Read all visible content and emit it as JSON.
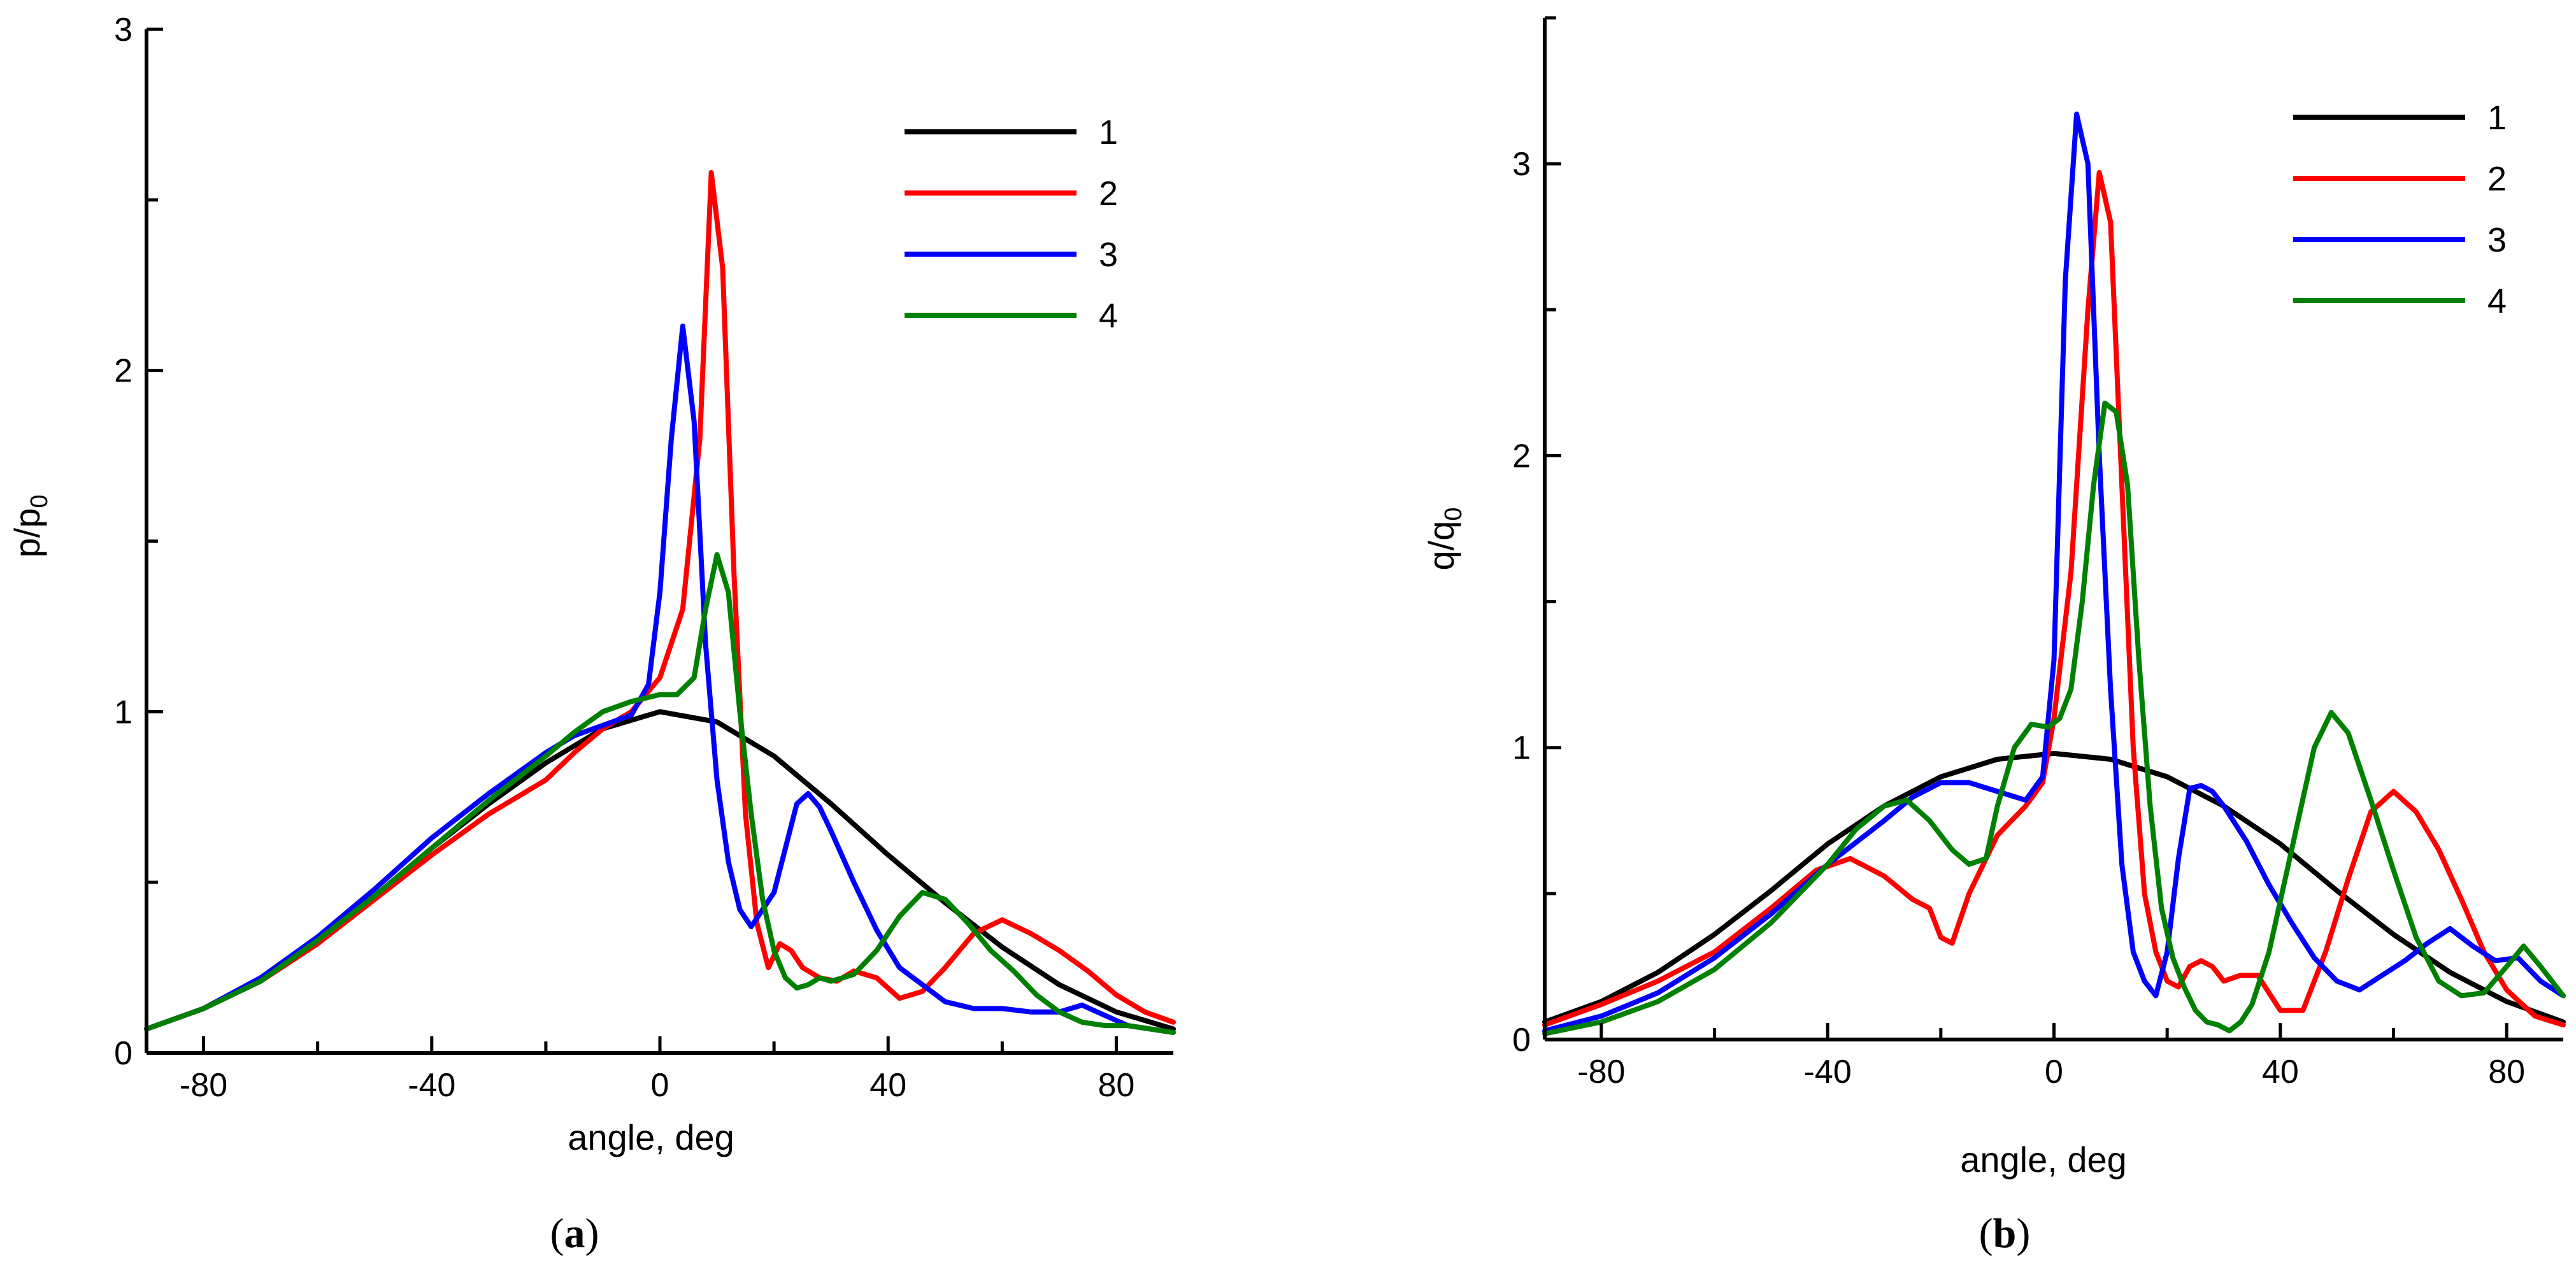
{
  "chart_data": [
    {
      "type": "line",
      "panel_label": "a",
      "xlabel": "angle, deg",
      "ylabel": "p/p",
      "ylabel_sub": "0",
      "xlim": [
        -90,
        90
      ],
      "ylim": [
        0,
        3
      ],
      "xticks": [
        -80,
        -40,
        0,
        40,
        80
      ],
      "yticks": [
        0,
        1,
        2,
        3
      ],
      "legend_position": "top-right",
      "series": [
        {
          "name": "1",
          "color": "#000000",
          "x": [
            -90,
            -80,
            -70,
            -60,
            -50,
            -40,
            -30,
            -20,
            -10,
            0,
            10,
            20,
            30,
            40,
            50,
            60,
            70,
            80,
            90
          ],
          "y": [
            0.07,
            0.13,
            0.22,
            0.33,
            0.46,
            0.6,
            0.73,
            0.85,
            0.95,
            1.0,
            0.97,
            0.87,
            0.73,
            0.58,
            0.44,
            0.31,
            0.2,
            0.12,
            0.07
          ]
        },
        {
          "name": "2",
          "color": "#ff0000",
          "x": [
            -90,
            -80,
            -70,
            -60,
            -50,
            -40,
            -30,
            -20,
            -15,
            -10,
            -5,
            0,
            4,
            7,
            9,
            11,
            13,
            15,
            17,
            19,
            21,
            23,
            25,
            28,
            31,
            34,
            38,
            42,
            46,
            50,
            55,
            60,
            65,
            70,
            75,
            80,
            85,
            90
          ],
          "y": [
            0.07,
            0.13,
            0.21,
            0.32,
            0.45,
            0.58,
            0.7,
            0.8,
            0.88,
            0.95,
            1.0,
            1.1,
            1.3,
            1.8,
            2.58,
            2.3,
            1.4,
            0.7,
            0.38,
            0.25,
            0.32,
            0.3,
            0.25,
            0.22,
            0.21,
            0.24,
            0.22,
            0.16,
            0.18,
            0.25,
            0.35,
            0.39,
            0.35,
            0.3,
            0.24,
            0.17,
            0.12,
            0.09
          ]
        },
        {
          "name": "3",
          "color": "#0000ff",
          "x": [
            -90,
            -80,
            -70,
            -60,
            -50,
            -40,
            -30,
            -20,
            -15,
            -10,
            -5,
            -2,
            0,
            2,
            4,
            6,
            8,
            10,
            12,
            14,
            16,
            18,
            20,
            22,
            24,
            26,
            28,
            30,
            34,
            38,
            42,
            46,
            50,
            55,
            60,
            65,
            70,
            74,
            78,
            82,
            86,
            90
          ],
          "y": [
            0.07,
            0.13,
            0.22,
            0.34,
            0.48,
            0.63,
            0.76,
            0.88,
            0.93,
            0.96,
            0.99,
            1.08,
            1.35,
            1.8,
            2.13,
            1.85,
            1.2,
            0.8,
            0.56,
            0.42,
            0.37,
            0.42,
            0.47,
            0.6,
            0.73,
            0.76,
            0.72,
            0.65,
            0.5,
            0.36,
            0.25,
            0.2,
            0.15,
            0.13,
            0.13,
            0.12,
            0.12,
            0.14,
            0.11,
            0.08,
            0.07,
            0.06
          ]
        },
        {
          "name": "4",
          "color": "#008000",
          "x": [
            -90,
            -80,
            -70,
            -60,
            -50,
            -40,
            -30,
            -20,
            -15,
            -10,
            -5,
            0,
            3,
            6,
            8,
            10,
            12,
            14,
            16,
            18,
            20,
            22,
            24,
            26,
            28,
            30,
            34,
            38,
            42,
            46,
            50,
            54,
            58,
            62,
            66,
            70,
            74,
            78,
            82,
            86,
            90
          ],
          "y": [
            0.07,
            0.13,
            0.21,
            0.33,
            0.46,
            0.6,
            0.74,
            0.87,
            0.94,
            1.0,
            1.03,
            1.05,
            1.05,
            1.1,
            1.3,
            1.46,
            1.35,
            1.0,
            0.7,
            0.45,
            0.3,
            0.22,
            0.19,
            0.2,
            0.22,
            0.21,
            0.23,
            0.3,
            0.4,
            0.47,
            0.45,
            0.38,
            0.3,
            0.24,
            0.17,
            0.12,
            0.09,
            0.08,
            0.08,
            0.07,
            0.06
          ]
        }
      ]
    },
    {
      "type": "line",
      "panel_label": "b",
      "xlabel": "angle, deg",
      "ylabel": "q/q",
      "ylabel_sub": "0",
      "xlim": [
        -90,
        90
      ],
      "ylim": [
        0,
        3.5
      ],
      "xticks": [
        -80,
        -40,
        0,
        40,
        80
      ],
      "yticks": [
        0,
        1,
        2,
        3
      ],
      "legend_position": "top-right",
      "series": [
        {
          "name": "1",
          "color": "#000000",
          "x": [
            -90,
            -80,
            -70,
            -60,
            -50,
            -40,
            -30,
            -20,
            -10,
            0,
            10,
            20,
            30,
            40,
            50,
            60,
            70,
            80,
            90
          ],
          "y": [
            0.06,
            0.13,
            0.23,
            0.36,
            0.51,
            0.67,
            0.8,
            0.9,
            0.96,
            0.98,
            0.96,
            0.9,
            0.8,
            0.67,
            0.51,
            0.36,
            0.23,
            0.13,
            0.06
          ]
        },
        {
          "name": "2",
          "color": "#ff0000",
          "x": [
            -90,
            -80,
            -70,
            -60,
            -50,
            -42,
            -36,
            -30,
            -25,
            -22,
            -20,
            -18,
            -15,
            -10,
            -5,
            -2,
            0,
            3,
            6,
            8,
            10,
            12,
            14,
            16,
            18,
            20,
            22,
            24,
            26,
            28,
            30,
            33,
            36,
            40,
            44,
            48,
            52,
            56,
            60,
            64,
            68,
            72,
            76,
            80,
            85,
            90
          ],
          "y": [
            0.05,
            0.12,
            0.2,
            0.3,
            0.45,
            0.58,
            0.62,
            0.56,
            0.48,
            0.45,
            0.35,
            0.33,
            0.5,
            0.7,
            0.8,
            0.88,
            1.1,
            1.6,
            2.5,
            2.97,
            2.8,
            1.9,
            1.0,
            0.5,
            0.3,
            0.2,
            0.18,
            0.25,
            0.27,
            0.25,
            0.2,
            0.22,
            0.22,
            0.1,
            0.1,
            0.3,
            0.55,
            0.78,
            0.85,
            0.78,
            0.65,
            0.48,
            0.3,
            0.17,
            0.08,
            0.05
          ]
        },
        {
          "name": "3",
          "color": "#0000ff",
          "x": [
            -90,
            -80,
            -70,
            -60,
            -50,
            -40,
            -30,
            -25,
            -20,
            -15,
            -10,
            -5,
            -2,
            0,
            2,
            4,
            6,
            8,
            10,
            12,
            14,
            16,
            18,
            20,
            22,
            24,
            26,
            28,
            30,
            34,
            38,
            42,
            46,
            50,
            54,
            58,
            62,
            66,
            70,
            74,
            78,
            82,
            86,
            90
          ],
          "y": [
            0.03,
            0.08,
            0.16,
            0.28,
            0.43,
            0.6,
            0.75,
            0.83,
            0.88,
            0.88,
            0.85,
            0.82,
            0.9,
            1.3,
            2.6,
            3.17,
            3.0,
            2.0,
            1.2,
            0.6,
            0.3,
            0.2,
            0.15,
            0.3,
            0.62,
            0.86,
            0.87,
            0.85,
            0.8,
            0.68,
            0.53,
            0.4,
            0.28,
            0.2,
            0.17,
            0.22,
            0.27,
            0.33,
            0.38,
            0.32,
            0.27,
            0.28,
            0.2,
            0.15
          ]
        },
        {
          "name": "4",
          "color": "#008000",
          "x": [
            -90,
            -80,
            -70,
            -60,
            -50,
            -40,
            -35,
            -30,
            -26,
            -22,
            -18,
            -15,
            -12,
            -10,
            -7,
            -4,
            -1,
            1,
            3,
            5,
            7,
            9,
            11,
            13,
            15,
            17,
            19,
            21,
            23,
            25,
            27,
            29,
            31,
            33,
            35,
            38,
            42,
            46,
            49,
            52,
            56,
            60,
            64,
            68,
            72,
            76,
            80,
            83,
            86,
            90
          ],
          "y": [
            0.02,
            0.06,
            0.13,
            0.24,
            0.4,
            0.6,
            0.72,
            0.8,
            0.82,
            0.75,
            0.65,
            0.6,
            0.62,
            0.8,
            1.0,
            1.08,
            1.07,
            1.1,
            1.2,
            1.5,
            1.9,
            2.18,
            2.15,
            1.9,
            1.3,
            0.8,
            0.45,
            0.28,
            0.18,
            0.1,
            0.06,
            0.05,
            0.03,
            0.06,
            0.12,
            0.3,
            0.65,
            1.0,
            1.12,
            1.05,
            0.82,
            0.58,
            0.35,
            0.2,
            0.15,
            0.16,
            0.25,
            0.32,
            0.25,
            0.15
          ]
        }
      ]
    }
  ]
}
